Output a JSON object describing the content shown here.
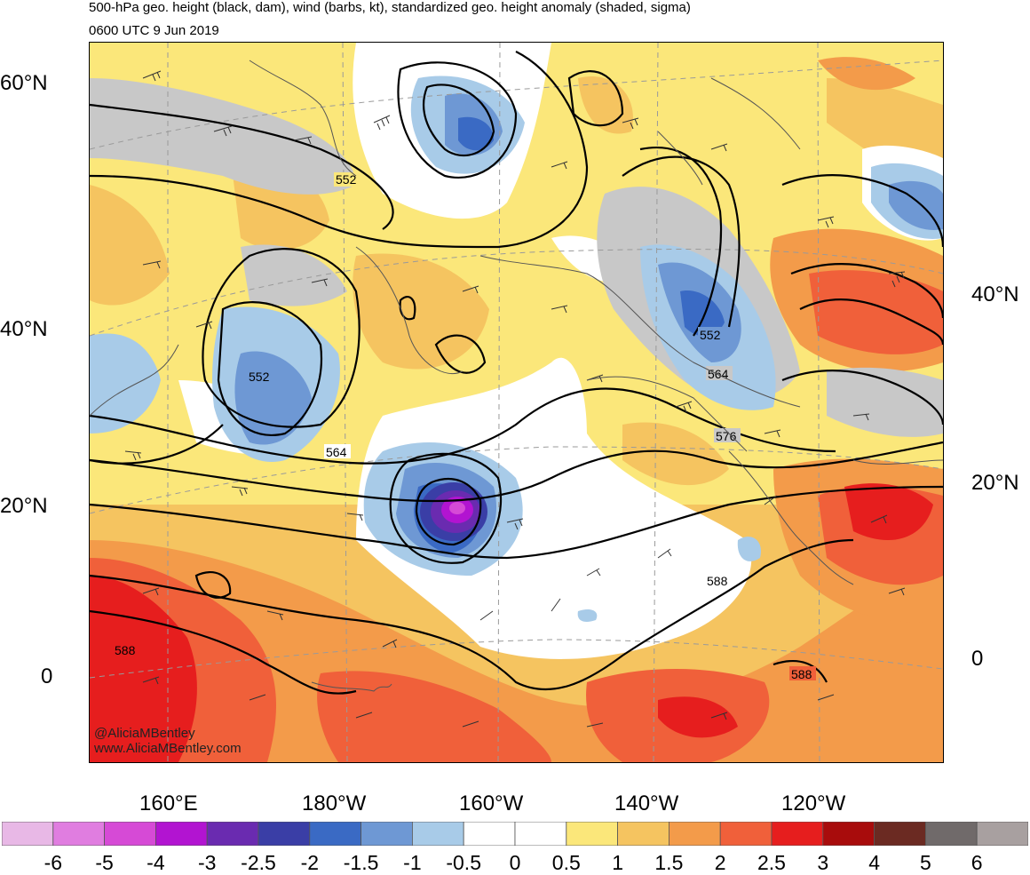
{
  "title": {
    "line1": "500-hPa geo. height (black, dam), wind (barbs, kt), standardized geo. height anomaly (shaded, sigma)",
    "line2": "0600 UTC 9 Jun 2019"
  },
  "axes": {
    "lat_left": [
      "60°N",
      "40°N",
      "20°N",
      "0"
    ],
    "lat_right": [
      "40°N",
      "20°N",
      "0"
    ],
    "lon_bottom": [
      "160°E",
      "180°W",
      "160°W",
      "140°W",
      "120°W"
    ]
  },
  "contour_labels": [
    "552",
    "552",
    "552",
    "564",
    "564",
    "576",
    "588",
    "588",
    "588"
  ],
  "credits": {
    "handle": "@AliciaMBentley",
    "site": "www.AliciaMBentley.com"
  },
  "colorbar": {
    "labels": [
      "-6",
      "-5",
      "-4",
      "-3",
      "-2.5",
      "-2",
      "-1.5",
      "-1",
      "-0.5",
      "0",
      "0.5",
      "1",
      "1.5",
      "2",
      "2.5",
      "3",
      "4",
      "5",
      "6"
    ],
    "colors": [
      "#e8b8e6",
      "#e07de0",
      "#d64ad6",
      "#b214d1",
      "#6a2bb0",
      "#3a3ea6",
      "#3a6ac4",
      "#6e98d4",
      "#a8cbe8",
      "#ffffff",
      "#ffffff",
      "#fbe77a",
      "#f5c460",
      "#f39b4a",
      "#f0603a",
      "#e61e1e",
      "#a80c0c",
      "#6b2a22",
      "#706a6a",
      "#a8a0a0"
    ]
  }
}
